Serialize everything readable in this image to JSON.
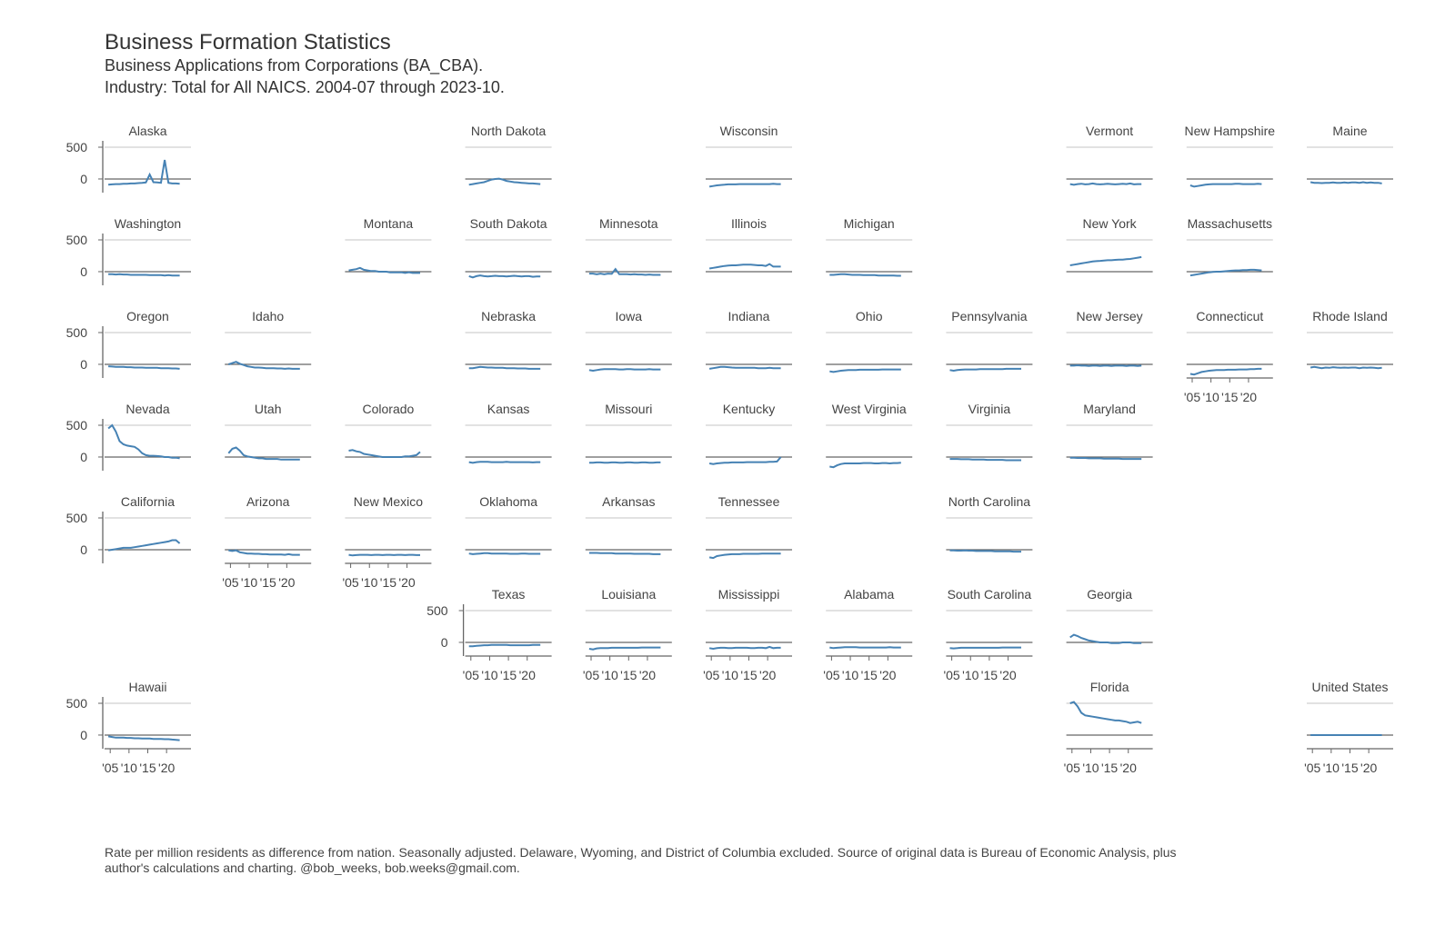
{
  "chart_data": {
    "type": "line",
    "title": "Business Formation Statistics",
    "subtitle": [
      "Business Applications from Corporations (BA_CBA).",
      "Industry: Total for All NAICS. 2004-07 through 2023-10."
    ],
    "caption": [
      "Rate per million residents as difference from nation. Seasonally adjusted. Delaware, Wyoming, and District of Columbia excluded. Source of original data is Bureau of Economic Analysis, plus",
      "author's calculations and charting. @bob_weeks, bob.weeks@gmail.com."
    ],
    "color": "#4682b4",
    "x": [
      2004.5,
      2005.5,
      2006.5,
      2007.5,
      2008.5,
      2009.5,
      2010.5,
      2011.5,
      2012.5,
      2013.5,
      2014.5,
      2015.5,
      2016.5,
      2017.5,
      2018.5,
      2019.5,
      2020.5,
      2021.5,
      2022.5,
      2023.5
    ],
    "xlim": [
      2003.5,
      2026.5
    ],
    "xticks": [
      {
        "value": 2005,
        "label": "'05"
      },
      {
        "value": 2010,
        "label": "'10"
      },
      {
        "value": 2015,
        "label": "'15"
      },
      {
        "value": 2020,
        "label": "'20"
      }
    ],
    "ylim": [
      -215,
      600
    ],
    "yticks": [
      0,
      500
    ],
    "series": [
      {
        "name": "Alaska",
        "values": [
          -90,
          -85,
          -80,
          -80,
          -75,
          -75,
          -70,
          -70,
          -65,
          -60,
          -55,
          70,
          -50,
          -55,
          -60,
          300,
          -60,
          -70,
          -70,
          -75
        ]
      },
      {
        "name": "North Dakota",
        "values": [
          -90,
          -80,
          -70,
          -60,
          -50,
          -30,
          -10,
          0,
          5,
          -10,
          -30,
          -40,
          -50,
          -55,
          -60,
          -65,
          -70,
          -70,
          -75,
          -80
        ]
      },
      {
        "name": "Wisconsin",
        "values": [
          -120,
          -110,
          -100,
          -95,
          -90,
          -85,
          -85,
          -85,
          -80,
          -80,
          -80,
          -80,
          -80,
          -80,
          -80,
          -80,
          -80,
          -75,
          -80,
          -80
        ]
      },
      {
        "name": "Vermont",
        "values": [
          -80,
          -90,
          -80,
          -75,
          -85,
          -80,
          -70,
          -80,
          -85,
          -80,
          -75,
          -80,
          -85,
          -80,
          -75,
          -80,
          -70,
          -85,
          -80,
          -80
        ]
      },
      {
        "name": "New Hampshire",
        "values": [
          -100,
          -120,
          -110,
          -100,
          -90,
          -85,
          -80,
          -80,
          -80,
          -80,
          -80,
          -80,
          -75,
          -75,
          -80,
          -80,
          -80,
          -80,
          -75,
          -80
        ]
      },
      {
        "name": "Maine",
        "values": [
          -50,
          -60,
          -60,
          -65,
          -60,
          -60,
          -55,
          -60,
          -60,
          -55,
          -60,
          -55,
          -55,
          -60,
          -50,
          -60,
          -55,
          -60,
          -60,
          -70
        ]
      },
      {
        "name": "Washington",
        "values": [
          -40,
          -40,
          -45,
          -40,
          -45,
          -45,
          -50,
          -50,
          -50,
          -50,
          -50,
          -55,
          -55,
          -55,
          -55,
          -60,
          -55,
          -60,
          -60,
          -60
        ]
      },
      {
        "name": "Montana",
        "values": [
          20,
          30,
          40,
          60,
          30,
          20,
          10,
          10,
          0,
          0,
          0,
          -10,
          -10,
          -10,
          -10,
          -20,
          -10,
          -20,
          -20,
          -20
        ]
      },
      {
        "name": "South Dakota",
        "values": [
          -70,
          -90,
          -70,
          -60,
          -70,
          -75,
          -70,
          -65,
          -70,
          -70,
          -75,
          -70,
          -65,
          -70,
          -75,
          -70,
          -70,
          -80,
          -75,
          -75
        ]
      },
      {
        "name": "Minnesota",
        "values": [
          -30,
          -30,
          -40,
          -30,
          -40,
          -30,
          -35,
          40,
          -40,
          -40,
          -40,
          -45,
          -40,
          -45,
          -45,
          -50,
          -45,
          -50,
          -50,
          -50
        ]
      },
      {
        "name": "Illinois",
        "values": [
          50,
          60,
          70,
          80,
          90,
          95,
          100,
          100,
          105,
          110,
          110,
          110,
          105,
          100,
          100,
          90,
          120,
          80,
          80,
          80
        ]
      },
      {
        "name": "Michigan",
        "values": [
          -50,
          -50,
          -45,
          -40,
          -40,
          -45,
          -50,
          -50,
          -50,
          -55,
          -55,
          -55,
          -55,
          -60,
          -60,
          -60,
          -60,
          -60,
          -65,
          -65
        ]
      },
      {
        "name": "New York",
        "values": [
          100,
          110,
          120,
          130,
          140,
          150,
          160,
          165,
          170,
          175,
          180,
          180,
          185,
          190,
          190,
          195,
          200,
          210,
          220,
          230
        ]
      },
      {
        "name": "Massachusetts",
        "values": [
          -60,
          -50,
          -40,
          -30,
          -20,
          -10,
          -5,
          0,
          0,
          5,
          10,
          15,
          20,
          20,
          25,
          25,
          30,
          30,
          25,
          20
        ]
      },
      {
        "name": "Oregon",
        "values": [
          -30,
          -35,
          -40,
          -40,
          -40,
          -45,
          -45,
          -50,
          -50,
          -50,
          -55,
          -55,
          -55,
          -55,
          -60,
          -60,
          -60,
          -65,
          -65,
          -70
        ]
      },
      {
        "name": "Idaho",
        "values": [
          0,
          20,
          40,
          10,
          -10,
          -30,
          -40,
          -50,
          -50,
          -55,
          -60,
          -60,
          -60,
          -65,
          -65,
          -70,
          -65,
          -70,
          -70,
          -70
        ]
      },
      {
        "name": "Nebraska",
        "values": [
          -60,
          -60,
          -50,
          -40,
          -45,
          -50,
          -50,
          -55,
          -55,
          -55,
          -60,
          -60,
          -60,
          -65,
          -65,
          -65,
          -70,
          -70,
          -70,
          -70
        ]
      },
      {
        "name": "Iowa",
        "values": [
          -90,
          -100,
          -90,
          -80,
          -75,
          -75,
          -75,
          -75,
          -80,
          -80,
          -75,
          -75,
          -80,
          -80,
          -80,
          -80,
          -75,
          -80,
          -80,
          -80
        ]
      },
      {
        "name": "Indiana",
        "values": [
          -70,
          -60,
          -50,
          -40,
          -40,
          -45,
          -50,
          -55,
          -55,
          -55,
          -55,
          -55,
          -55,
          -60,
          -60,
          -60,
          -55,
          -60,
          -60,
          -60
        ]
      },
      {
        "name": "Ohio",
        "values": [
          -110,
          -120,
          -110,
          -100,
          -95,
          -90,
          -90,
          -90,
          -85,
          -85,
          -85,
          -85,
          -85,
          -85,
          -80,
          -80,
          -80,
          -80,
          -80,
          -80
        ]
      },
      {
        "name": "Pennsylvania",
        "values": [
          -90,
          -100,
          -90,
          -85,
          -80,
          -80,
          -80,
          -80,
          -75,
          -75,
          -75,
          -75,
          -75,
          -75,
          -75,
          -70,
          -70,
          -70,
          -70,
          -70
        ]
      },
      {
        "name": "New Jersey",
        "values": [
          -20,
          -20,
          -15,
          -20,
          -20,
          -25,
          -20,
          -20,
          -25,
          -20,
          -20,
          -25,
          -20,
          -20,
          -20,
          -25,
          -20,
          -20,
          -25,
          -20
        ]
      },
      {
        "name": "Connecticut",
        "values": [
          -150,
          -160,
          -140,
          -120,
          -110,
          -100,
          -95,
          -90,
          -90,
          -90,
          -85,
          -85,
          -85,
          -80,
          -80,
          -80,
          -75,
          -75,
          -70,
          -70
        ]
      },
      {
        "name": "Rhode Island",
        "values": [
          -50,
          -40,
          -50,
          -60,
          -50,
          -55,
          -45,
          -50,
          -55,
          -50,
          -55,
          -50,
          -50,
          -60,
          -50,
          -55,
          -50,
          -55,
          -60,
          -55
        ]
      },
      {
        "name": "Nevada",
        "values": [
          450,
          500,
          400,
          250,
          200,
          180,
          170,
          160,
          120,
          60,
          30,
          20,
          20,
          15,
          10,
          0,
          0,
          -10,
          -10,
          -20
        ]
      },
      {
        "name": "Utah",
        "values": [
          60,
          130,
          150,
          100,
          30,
          10,
          0,
          -10,
          -20,
          -20,
          -30,
          -30,
          -30,
          -30,
          -40,
          -40,
          -40,
          -40,
          -40,
          -40
        ]
      },
      {
        "name": "Colorado",
        "values": [
          100,
          110,
          90,
          80,
          50,
          40,
          30,
          20,
          10,
          0,
          0,
          0,
          0,
          0,
          0,
          10,
          10,
          20,
          30,
          80
        ]
      },
      {
        "name": "Kansas",
        "values": [
          -80,
          -90,
          -80,
          -75,
          -75,
          -75,
          -80,
          -80,
          -80,
          -80,
          -75,
          -80,
          -80,
          -80,
          -80,
          -80,
          -80,
          -85,
          -80,
          -80
        ]
      },
      {
        "name": "Missouri",
        "values": [
          -90,
          -90,
          -85,
          -85,
          -90,
          -90,
          -85,
          -85,
          -90,
          -90,
          -85,
          -85,
          -90,
          -90,
          -85,
          -85,
          -90,
          -90,
          -85,
          -85
        ]
      },
      {
        "name": "Kentucky",
        "values": [
          -100,
          -110,
          -100,
          -95,
          -90,
          -90,
          -85,
          -85,
          -85,
          -85,
          -80,
          -80,
          -80,
          -80,
          -80,
          -80,
          -75,
          -75,
          -70,
          0
        ]
      },
      {
        "name": "West Virginia",
        "values": [
          -150,
          -160,
          -130,
          -110,
          -100,
          -100,
          -100,
          -100,
          -100,
          -95,
          -95,
          -95,
          -100,
          -100,
          -95,
          -95,
          -100,
          -95,
          -95,
          -90
        ]
      },
      {
        "name": "Virginia",
        "values": [
          -30,
          -30,
          -30,
          -35,
          -35,
          -35,
          -40,
          -40,
          -40,
          -40,
          -45,
          -45,
          -45,
          -45,
          -45,
          -50,
          -50,
          -50,
          -50,
          -50
        ]
      },
      {
        "name": "Maryland",
        "values": [
          -10,
          -10,
          -15,
          -15,
          -15,
          -20,
          -20,
          -20,
          -20,
          -25,
          -25,
          -25,
          -25,
          -25,
          -30,
          -30,
          -30,
          -30,
          -30,
          -30
        ]
      },
      {
        "name": "California",
        "values": [
          -10,
          0,
          10,
          20,
          30,
          30,
          30,
          40,
          50,
          60,
          70,
          80,
          90,
          100,
          110,
          120,
          130,
          150,
          150,
          100
        ]
      },
      {
        "name": "Arizona",
        "values": [
          -10,
          -20,
          -10,
          -40,
          -50,
          -60,
          -60,
          -65,
          -65,
          -70,
          -70,
          -75,
          -75,
          -75,
          -75,
          -80,
          -70,
          -80,
          -80,
          -80
        ]
      },
      {
        "name": "New Mexico",
        "values": [
          -80,
          -90,
          -85,
          -80,
          -80,
          -80,
          -85,
          -80,
          -80,
          -85,
          -80,
          -80,
          -85,
          -80,
          -80,
          -85,
          -80,
          -80,
          -85,
          -85
        ]
      },
      {
        "name": "Oklahoma",
        "values": [
          -60,
          -70,
          -65,
          -60,
          -55,
          -55,
          -60,
          -60,
          -60,
          -60,
          -60,
          -65,
          -65,
          -65,
          -60,
          -60,
          -65,
          -65,
          -65,
          -65
        ]
      },
      {
        "name": "Arkansas",
        "values": [
          -50,
          -50,
          -50,
          -55,
          -55,
          -55,
          -55,
          -60,
          -60,
          -60,
          -60,
          -60,
          -65,
          -65,
          -65,
          -65,
          -65,
          -70,
          -70,
          -70
        ]
      },
      {
        "name": "Tennessee",
        "values": [
          -120,
          -130,
          -100,
          -90,
          -80,
          -75,
          -70,
          -70,
          -70,
          -65,
          -65,
          -65,
          -65,
          -65,
          -60,
          -60,
          -60,
          -60,
          -60,
          -60
        ]
      },
      {
        "name": "North Carolina",
        "values": [
          -10,
          -10,
          -15,
          -15,
          -10,
          -15,
          -15,
          -20,
          -20,
          -20,
          -20,
          -20,
          -25,
          -25,
          -25,
          -25,
          -25,
          -30,
          -30,
          -30
        ]
      },
      {
        "name": "Texas",
        "values": [
          -60,
          -60,
          -55,
          -50,
          -45,
          -45,
          -40,
          -40,
          -40,
          -40,
          -40,
          -45,
          -45,
          -45,
          -45,
          -45,
          -45,
          -40,
          -40,
          -40
        ]
      },
      {
        "name": "Louisiana",
        "values": [
          -100,
          -110,
          -95,
          -90,
          -90,
          -90,
          -85,
          -85,
          -85,
          -85,
          -85,
          -85,
          -85,
          -85,
          -80,
          -80,
          -80,
          -80,
          -80,
          -80
        ]
      },
      {
        "name": "Mississippi",
        "values": [
          -90,
          -100,
          -90,
          -85,
          -85,
          -90,
          -90,
          -85,
          -85,
          -85,
          -85,
          -90,
          -90,
          -85,
          -85,
          -90,
          -70,
          -90,
          -85,
          -85
        ]
      },
      {
        "name": "Alabama",
        "values": [
          -80,
          -90,
          -85,
          -80,
          -75,
          -75,
          -75,
          -75,
          -80,
          -80,
          -80,
          -80,
          -80,
          -80,
          -80,
          -80,
          -75,
          -80,
          -80,
          -80
        ]
      },
      {
        "name": "South Carolina",
        "values": [
          -90,
          -95,
          -90,
          -85,
          -85,
          -85,
          -85,
          -85,
          -85,
          -85,
          -85,
          -85,
          -85,
          -85,
          -80,
          -80,
          -80,
          -80,
          -80,
          -80
        ]
      },
      {
        "name": "Georgia",
        "values": [
          80,
          120,
          100,
          70,
          50,
          30,
          20,
          10,
          0,
          0,
          0,
          -10,
          -10,
          -10,
          0,
          0,
          0,
          -10,
          -10,
          -10
        ]
      },
      {
        "name": "Hawaii",
        "values": [
          -20,
          -30,
          -40,
          -40,
          -40,
          -45,
          -45,
          -50,
          -50,
          -55,
          -55,
          -55,
          -60,
          -60,
          -60,
          -65,
          -65,
          -70,
          -75,
          -80
        ]
      },
      {
        "name": "Florida",
        "values": [
          500,
          520,
          450,
          350,
          310,
          300,
          290,
          280,
          270,
          260,
          250,
          240,
          230,
          230,
          220,
          210,
          190,
          200,
          210,
          190
        ]
      },
      {
        "name": "United States",
        "values": [
          0,
          0,
          0,
          0,
          0,
          0,
          0,
          0,
          0,
          0,
          0,
          0,
          0,
          0,
          0,
          0,
          0,
          0,
          0,
          0
        ]
      }
    ]
  }
}
